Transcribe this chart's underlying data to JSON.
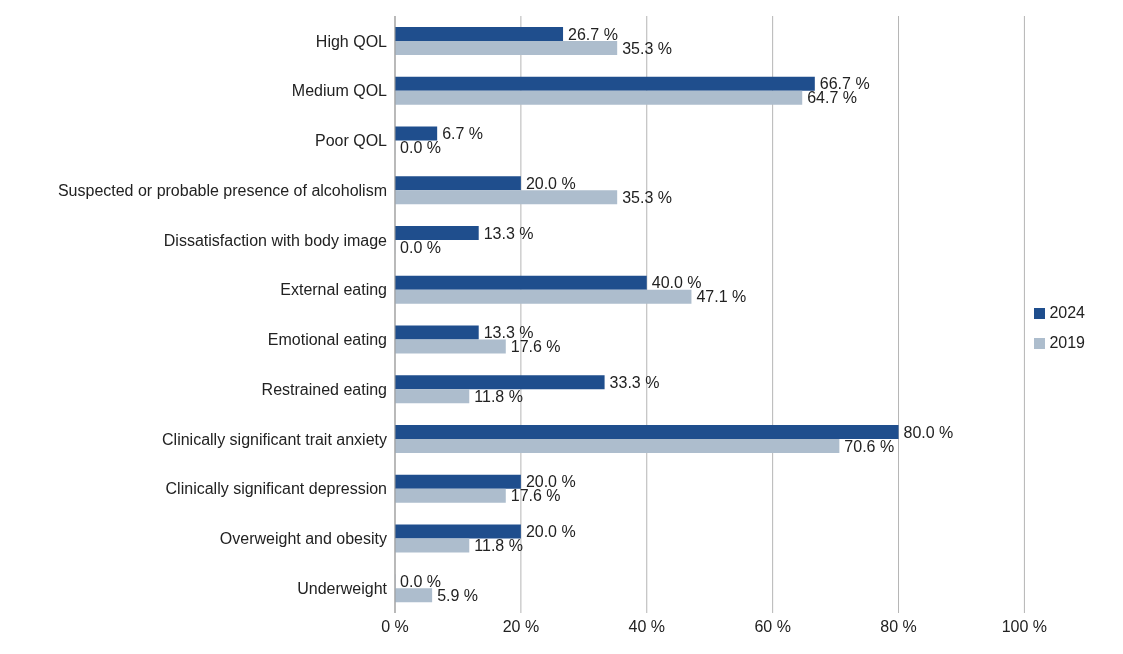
{
  "chart_data": {
    "type": "bar",
    "orientation": "horizontal",
    "categories": [
      "High QOL",
      "Medium QOL",
      "Poor QOL",
      "Suspected or probable presence of alcoholism",
      "Dissatisfaction with body image",
      "External eating",
      "Emotional eating",
      "Restrained eating",
      "Clinically significant trait anxiety",
      "Clinically significant depression",
      "Overweight and obesity",
      "Underweight"
    ],
    "series": [
      {
        "name": "2024",
        "color": "#1f4e8d",
        "values": [
          26.7,
          66.7,
          6.7,
          20.0,
          13.3,
          40.0,
          13.3,
          33.3,
          80.0,
          20.0,
          20.0,
          0.0
        ],
        "value_labels": [
          "26.7 %",
          "66.7 %",
          "6.7 %",
          "20.0 %",
          "13.3 %",
          "40.0 %",
          "13.3 %",
          "33.3 %",
          "80.0 %",
          "20.0 %",
          "20.0 %",
          "0.0 %"
        ]
      },
      {
        "name": "2019",
        "color": "#adbdcd",
        "values": [
          35.3,
          64.7,
          0.0,
          35.3,
          0.0,
          47.1,
          17.6,
          11.8,
          70.6,
          17.6,
          11.8,
          5.9
        ],
        "value_labels": [
          "35.3 %",
          "64.7 %",
          "0.0 %",
          "35.3 %",
          "0.0 %",
          "47.1 %",
          "17.6 %",
          "11.8 %",
          "70.6 %",
          "17.6 %",
          "11.8 %",
          "5.9 %"
        ]
      }
    ],
    "xlim": [
      0,
      100
    ],
    "xticks": [
      {
        "value": 0,
        "label": "0 %"
      },
      {
        "value": 20,
        "label": "20 %"
      },
      {
        "value": 40,
        "label": "40 %"
      },
      {
        "value": 60,
        "label": "60 %"
      },
      {
        "value": 80,
        "label": "80 %"
      },
      {
        "value": 100,
        "label": "100 %"
      }
    ],
    "grid": "x",
    "legend": "right"
  }
}
